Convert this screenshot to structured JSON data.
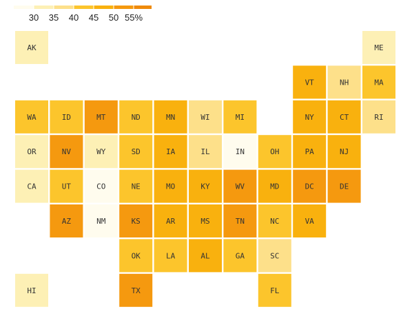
{
  "legend": {
    "ticks": [
      30,
      35,
      40,
      45,
      50,
      {
        "value": 55,
        "label": "55%"
      }
    ],
    "colors": [
      "#fffcee",
      "#fdf0b5",
      "#fde08a",
      "#fcc52c",
      "#f9b10e",
      "#f5990f",
      "#ef8a0a"
    ]
  },
  "tiles": [
    {
      "label": "AK",
      "value": 32.5
    },
    {
      "label": "ME",
      "value": 32.5
    },
    {
      "label": "VT",
      "value": 47.5
    },
    {
      "label": "NH",
      "value": 37.5
    },
    {
      "label": "MA",
      "value": 42.5
    },
    {
      "label": "WA",
      "value": 42.5
    },
    {
      "label": "ID",
      "value": 42.5
    },
    {
      "label": "MT",
      "value": 52.5
    },
    {
      "label": "ND",
      "value": 42.5
    },
    {
      "label": "MN",
      "value": 47.5
    },
    {
      "label": "WI",
      "value": 37.5
    },
    {
      "label": "MI",
      "value": 42.5
    },
    {
      "label": "NY",
      "value": 47.5
    },
    {
      "label": "CT",
      "value": 47.5
    },
    {
      "label": "RI",
      "value": 37.5
    },
    {
      "label": "OR",
      "value": 32.5
    },
    {
      "label": "NV",
      "value": 52.5
    },
    {
      "label": "WY",
      "value": 32.5
    },
    {
      "label": "SD",
      "value": 42.5
    },
    {
      "label": "IA",
      "value": 47.5
    },
    {
      "label": "IL",
      "value": 37.5
    },
    {
      "label": "IN",
      "value": 28
    },
    {
      "label": "OH",
      "value": 42.5
    },
    {
      "label": "PA",
      "value": 47.5
    },
    {
      "label": "NJ",
      "value": 47.5
    },
    {
      "label": "CA",
      "value": 32.5
    },
    {
      "label": "UT",
      "value": 42.5
    },
    {
      "label": "CO",
      "value": 28
    },
    {
      "label": "NE",
      "value": 42.5
    },
    {
      "label": "MO",
      "value": 47.5
    },
    {
      "label": "KY",
      "value": 47.5
    },
    {
      "label": "WV",
      "value": 52.5
    },
    {
      "label": "MD",
      "value": 47.5
    },
    {
      "label": "DC",
      "value": 52.5
    },
    {
      "label": "DE",
      "value": 52.5
    },
    {
      "label": "AZ",
      "value": 52.5
    },
    {
      "label": "NM",
      "value": 28
    },
    {
      "label": "KS",
      "value": 52.5
    },
    {
      "label": "AR",
      "value": 47.5
    },
    {
      "label": "MS",
      "value": 47.5
    },
    {
      "label": "TN",
      "value": 52.5
    },
    {
      "label": "NC",
      "value": 42.5
    },
    {
      "label": "VA",
      "value": 47.5
    },
    {
      "label": "OK",
      "value": 42.5
    },
    {
      "label": "LA",
      "value": 42.5
    },
    {
      "label": "AL",
      "value": 47.5
    },
    {
      "label": "GA",
      "value": 42.5
    },
    {
      "label": "SC",
      "value": 37.5
    },
    {
      "label": "HI",
      "value": 32.5
    },
    {
      "label": "TX",
      "value": 52.5
    },
    {
      "label": "FL",
      "value": 42.5
    }
  ]
}
